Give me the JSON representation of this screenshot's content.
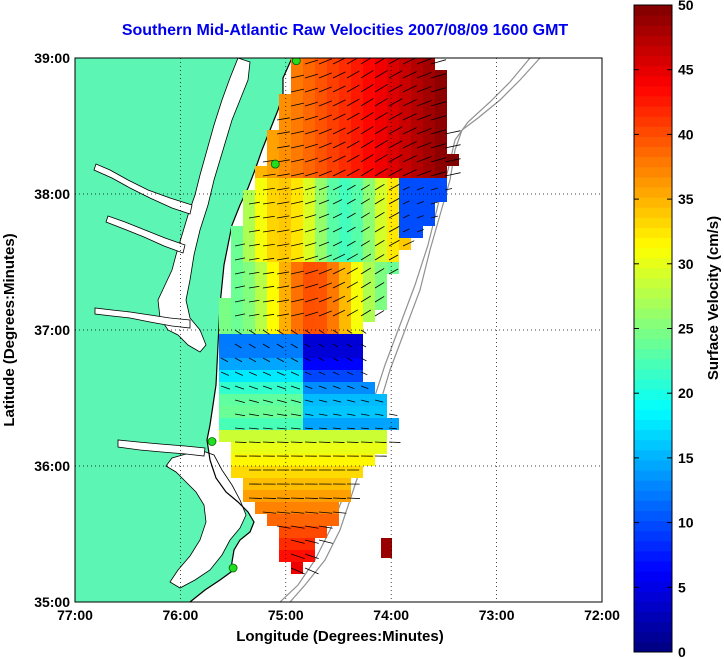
{
  "title": "Southern Mid-Atlantic Raw Velocities 2007/08/09 1600 GMT",
  "map": {
    "xlabel": "Longitude (Degrees:Minutes)",
    "ylabel": "Latitude (Degrees:Minutes)",
    "x_ticks": [
      {
        "lon": -77,
        "label": "77:00"
      },
      {
        "lon": -76,
        "label": "76:00"
      },
      {
        "lon": -75,
        "label": "75:00"
      },
      {
        "lon": -74,
        "label": "74:00"
      },
      {
        "lon": -73,
        "label": "73:00"
      },
      {
        "lon": -72,
        "label": "72:00"
      }
    ],
    "y_ticks": [
      {
        "lat": 39,
        "label": "39:00"
      },
      {
        "lat": 38,
        "label": "38:00"
      },
      {
        "lat": 37,
        "label": "37:00"
      },
      {
        "lat": 36,
        "label": "36:00"
      },
      {
        "lat": 35,
        "label": "35:00"
      }
    ],
    "lon_range": [
      -77,
      -72
    ],
    "lat_range": [
      35,
      39
    ],
    "grid": "dotted",
    "colors": {
      "land": "#5cf5b4",
      "water_body": "#ffffff",
      "isobath": "#909090",
      "station": "#22dd22",
      "vector": "#000000"
    },
    "stations": [
      {
        "lon": -74.9,
        "lat": 38.98
      },
      {
        "lon": -75.1,
        "lat": 38.22
      },
      {
        "lon": -75.7,
        "lat": 36.18
      },
      {
        "lon": -75.5,
        "lat": 35.25
      }
    ]
  },
  "colorbar": {
    "label": "Surface Velocity (cm/s)",
    "min": 0,
    "max": 50,
    "ticks": [
      {
        "value": 0,
        "label": "0"
      },
      {
        "value": 5,
        "label": "5"
      },
      {
        "value": 10,
        "label": "10"
      },
      {
        "value": 15,
        "label": "15"
      },
      {
        "value": 20,
        "label": "20"
      },
      {
        "value": 25,
        "label": "25"
      },
      {
        "value": 30,
        "label": "30"
      },
      {
        "value": 35,
        "label": "35"
      },
      {
        "value": 40,
        "label": "40"
      },
      {
        "value": 45,
        "label": "45"
      },
      {
        "value": 50,
        "label": "50"
      }
    ]
  }
}
